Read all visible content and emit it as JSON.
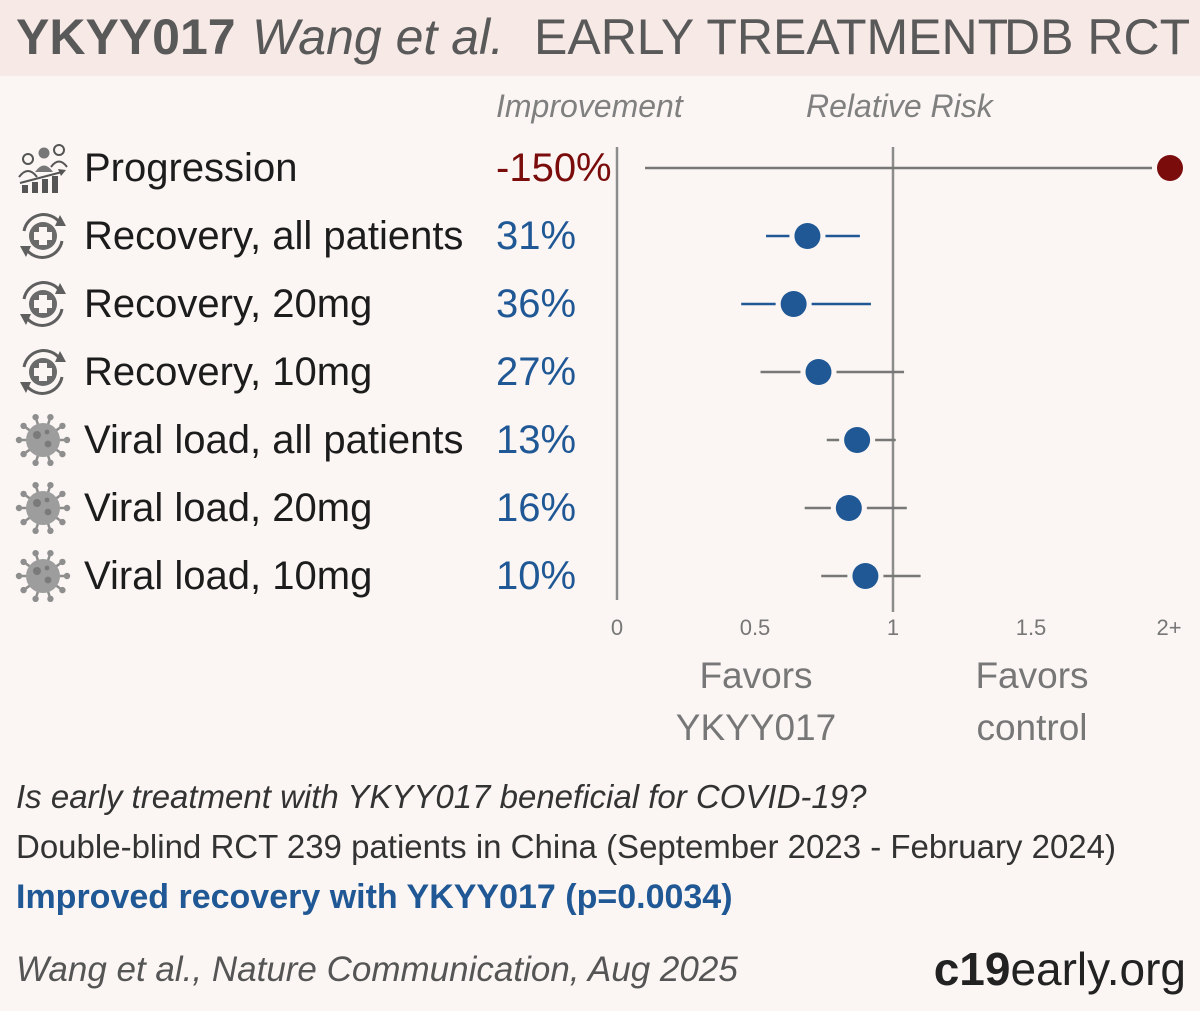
{
  "header": {
    "drug": "YKYY017",
    "author": "Wang et al.",
    "stage": "EARLY TREATMENT",
    "design": "DB RCT"
  },
  "columns": {
    "improvement": "Improvement",
    "relative_risk": "Relative Risk"
  },
  "colors": {
    "positive": "#1f5895",
    "negative": "#7a0c0c",
    "ci_blue": "#1f5895",
    "ci_gray": "#777777",
    "axis": "#8c8c8c"
  },
  "chart_data": {
    "type": "forest",
    "x_axis": {
      "range": [
        0,
        2
      ],
      "ticks": [
        "0",
        "0.5",
        "1",
        "1.5",
        "2+"
      ],
      "reference_line": 1
    },
    "rows": [
      {
        "label": "Progression",
        "icon": "progression-icon",
        "improvement": "-150%",
        "rr": 2.5,
        "ci": [
          0.1,
          2.5
        ],
        "ci_color": "gray",
        "dot_color": "negative"
      },
      {
        "label": "Recovery, all patients",
        "icon": "recovery-icon",
        "improvement": "31%",
        "rr": 0.69,
        "ci": [
          0.54,
          0.88
        ],
        "ci_color": "blue",
        "dot_color": "positive"
      },
      {
        "label": "Recovery, 20mg",
        "icon": "recovery-icon",
        "improvement": "36%",
        "rr": 0.64,
        "ci": [
          0.45,
          0.92
        ],
        "ci_color": "blue",
        "dot_color": "positive"
      },
      {
        "label": "Recovery, 10mg",
        "icon": "recovery-icon",
        "improvement": "27%",
        "rr": 0.73,
        "ci": [
          0.52,
          1.04
        ],
        "ci_color": "gray",
        "dot_color": "positive"
      },
      {
        "label": "Viral load, all patients",
        "icon": "virus-icon",
        "improvement": "13%",
        "rr": 0.87,
        "ci": [
          0.76,
          1.01
        ],
        "ci_color": "gray",
        "dot_color": "positive"
      },
      {
        "label": "Viral load, 20mg",
        "icon": "virus-icon",
        "improvement": "16%",
        "rr": 0.84,
        "ci": [
          0.68,
          1.05
        ],
        "ci_color": "gray",
        "dot_color": "positive"
      },
      {
        "label": "Viral load, 10mg",
        "icon": "virus-icon",
        "improvement": "10%",
        "rr": 0.9,
        "ci": [
          0.74,
          1.1
        ],
        "ci_color": "gray",
        "dot_color": "positive"
      }
    ],
    "favors_left": [
      "Favors",
      "YKYY017"
    ],
    "favors_right": [
      "Favors",
      "control"
    ]
  },
  "summary": {
    "question": "Is early treatment with YKYY017 beneficial for COVID-19?",
    "design": "Double-blind RCT 239 patients in China (September 2023 - February 2024)",
    "result": "Improved recovery with YKYY017 (p=0.0034)",
    "citation": "Wang et al., Nature Communication, Aug 2025"
  },
  "brand": {
    "bold": "c19",
    "rest": "early.org"
  }
}
